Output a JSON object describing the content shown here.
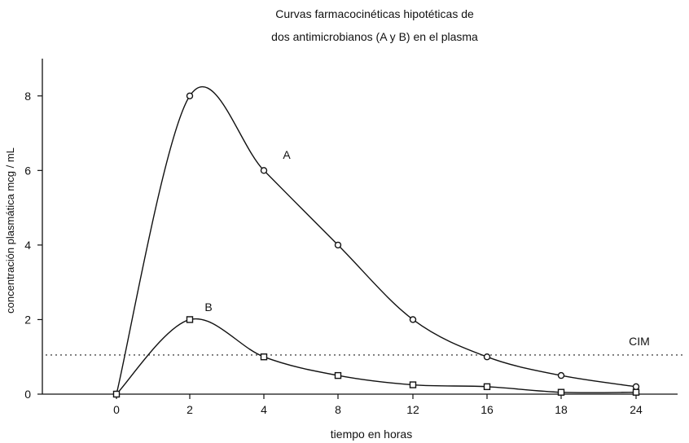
{
  "chart_data": {
    "type": "line",
    "title_line1": "Curvas farmacocinéticas hipotéticas de",
    "title_line2": "dos antimicrobianos (A y B) en el plasma",
    "xlabel": "tiempo en horas",
    "ylabel": "concentración plasmática mcg / mL",
    "x_ticks": [
      "0",
      "2",
      "4",
      "8",
      "12",
      "16",
      "18",
      "24"
    ],
    "y_ticks": [
      0,
      2,
      4,
      6,
      8
    ],
    "ylim": [
      0,
      9
    ],
    "grid": false,
    "series": [
      {
        "name": "A",
        "marker": "circle",
        "points": [
          {
            "x": "0",
            "y": 0
          },
          {
            "x": "2",
            "y": 8
          },
          {
            "x": "4",
            "y": 6
          },
          {
            "x": "8",
            "y": 4
          },
          {
            "x": "12",
            "y": 2
          },
          {
            "x": "16",
            "y": 1
          },
          {
            "x": "18",
            "y": 0.5
          },
          {
            "x": "24",
            "y": 0.2
          }
        ]
      },
      {
        "name": "B",
        "marker": "square",
        "points": [
          {
            "x": "0",
            "y": 0
          },
          {
            "x": "2",
            "y": 2
          },
          {
            "x": "4",
            "y": 1
          },
          {
            "x": "8",
            "y": 0.5
          },
          {
            "x": "12",
            "y": 0.25
          },
          {
            "x": "16",
            "y": 0.2
          },
          {
            "x": "18",
            "y": 0.05
          },
          {
            "x": "24",
            "y": 0.05
          }
        ]
      }
    ],
    "reference_line": {
      "label": "CIM",
      "y": 1.05,
      "style": "dotted"
    }
  }
}
